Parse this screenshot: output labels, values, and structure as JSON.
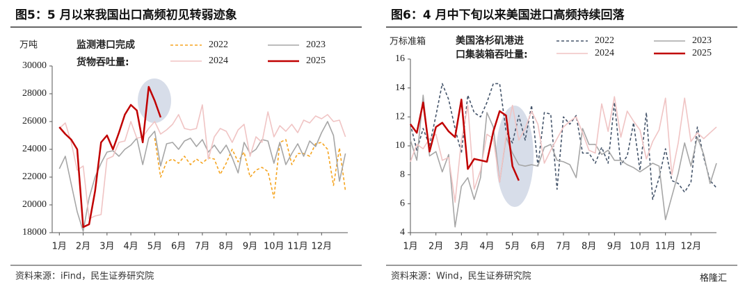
{
  "chart_data": [
    {
      "type": "line",
      "title": "图5：5 月以来我国出口高频初见转弱迹象",
      "unit": "万吨",
      "annotation": [
        "监测港口完成",
        "货物吞吐量:"
      ],
      "source": "资料来源：iFind，民生证券研究院",
      "xlim": [
        0.7,
        13.1
      ],
      "ylim": [
        18000,
        30000
      ],
      "yticks": [
        18000,
        20000,
        22000,
        24000,
        26000,
        28000,
        30000
      ],
      "xticks": [
        {
          "value": 1,
          "label": "1月"
        },
        {
          "value": 2,
          "label": "2月"
        },
        {
          "value": 3,
          "label": "3月"
        },
        {
          "value": 4,
          "label": "4月"
        },
        {
          "value": 5,
          "label": "5月"
        },
        {
          "value": 6,
          "label": "6月"
        },
        {
          "value": 7,
          "label": "7月"
        },
        {
          "value": 8,
          "label": "8月"
        },
        {
          "value": 9,
          "label": "9月"
        },
        {
          "value": 10,
          "label": "10月"
        },
        {
          "value": 11,
          "label": "11月"
        },
        {
          "value": 12,
          "label": "12月"
        }
      ],
      "x": [
        1,
        1.25,
        1.5,
        1.75,
        2,
        2.25,
        2.5,
        2.75,
        3,
        3.25,
        3.5,
        3.75,
        4,
        4.25,
        4.5,
        4.75,
        5,
        5.25,
        5.5,
        5.75,
        6,
        6.25,
        6.5,
        6.75,
        7,
        7.25,
        7.5,
        7.75,
        8,
        8.25,
        8.5,
        8.75,
        9,
        9.25,
        9.5,
        9.75,
        10,
        10.25,
        10.5,
        10.75,
        11,
        11.25,
        11.5,
        11.75,
        12,
        12.25,
        12.5,
        12.75,
        13
      ],
      "series": [
        {
          "name": "2022",
          "color": "#f5a41f",
          "style": "dashed",
          "values": [
            null,
            null,
            null,
            null,
            null,
            null,
            null,
            null,
            null,
            null,
            null,
            null,
            null,
            null,
            null,
            null,
            24800,
            22000,
            23100,
            23300,
            23000,
            23500,
            22900,
            23300,
            23000,
            23400,
            23300,
            22200,
            23000,
            24000,
            23100,
            23800,
            22000,
            22500,
            22700,
            22400,
            20500,
            24500,
            24700,
            22900,
            23700,
            23700,
            23500,
            24400,
            24500,
            24000,
            21400,
            24100,
            21000
          ]
        },
        {
          "name": "2023",
          "color": "#a6a6a6",
          "style": "solid",
          "values": [
            22600,
            23500,
            21500,
            19500,
            18100,
            20500,
            22000,
            23000,
            23800,
            23900,
            23500,
            24000,
            24300,
            24800,
            22900,
            24800,
            25300,
            22800,
            24400,
            24500,
            24000,
            24600,
            24800,
            24200,
            24700,
            23800,
            24300,
            23700,
            24300,
            23400,
            22300,
            24500,
            23700,
            24000,
            24700,
            24600,
            23000,
            24500,
            22900,
            23700,
            24400,
            23500,
            24600,
            24200,
            25200,
            26000,
            25000,
            21700,
            23700
          ]
        },
        {
          "name": "2024",
          "color": "#f0c4c4",
          "style": "solid",
          "values": [
            25500,
            25900,
            24500,
            22500,
            22800,
            19000,
            19200,
            19300,
            23300,
            23500,
            24500,
            24600,
            26000,
            24800,
            24900,
            25500,
            26000,
            25100,
            25400,
            25800,
            26500,
            25500,
            25400,
            25500,
            27200,
            23300,
            24900,
            25500,
            25300,
            24500,
            25400,
            25800,
            23500,
            24900,
            24500,
            26700,
            24900,
            25700,
            25300,
            25800,
            25200,
            26100,
            25900,
            26400,
            26200,
            26500,
            26000,
            26100,
            24900
          ]
        },
        {
          "name": "2025",
          "color": "#c00000",
          "style": "bold",
          "values": [
            25600,
            25100,
            24700,
            24000,
            18400,
            18600,
            21000,
            24500,
            25000,
            24000,
            25200,
            26500,
            27200,
            26800,
            24500,
            28500,
            27500,
            26300,
            null,
            null,
            null,
            null,
            null,
            null,
            null,
            null,
            null,
            null,
            null,
            null,
            null,
            null,
            null,
            null,
            null,
            null,
            null,
            null,
            null,
            null,
            null,
            null,
            null,
            null,
            null,
            null,
            null,
            null,
            null
          ]
        }
      ]
    },
    {
      "type": "line",
      "title": "图6：4 月中下旬以来美国进口高频持续回落",
      "unit": "万标准箱",
      "annotation": [
        "美国洛杉矶港进",
        "口集装箱吞吐量:"
      ],
      "source": "资料来源：Wind，民生证券研究院",
      "watermark": "格隆汇",
      "xlim": [
        1,
        13
      ],
      "ylim": [
        4,
        16
      ],
      "yticks": [
        4,
        6,
        8,
        10,
        12,
        14,
        16
      ],
      "xticks": [
        {
          "value": 1,
          "label": "1月"
        },
        {
          "value": 2,
          "label": "2月"
        },
        {
          "value": 3,
          "label": "3月"
        },
        {
          "value": 4,
          "label": "4月"
        },
        {
          "value": 5,
          "label": "5月"
        },
        {
          "value": 6,
          "label": "6月"
        },
        {
          "value": 7,
          "label": "7月"
        },
        {
          "value": 8,
          "label": "8月"
        },
        {
          "value": 9,
          "label": "9月"
        },
        {
          "value": 10,
          "label": "10月"
        },
        {
          "value": 11,
          "label": "11月"
        },
        {
          "value": 12,
          "label": "12月"
        }
      ],
      "x": [
        1,
        1.25,
        1.5,
        1.75,
        2,
        2.25,
        2.5,
        2.75,
        3,
        3.25,
        3.5,
        3.75,
        4,
        4.25,
        4.5,
        4.75,
        5,
        5.25,
        5.5,
        5.75,
        6,
        6.25,
        6.5,
        6.75,
        7,
        7.25,
        7.5,
        7.75,
        8,
        8.25,
        8.5,
        8.75,
        9,
        9.25,
        9.5,
        9.75,
        10,
        10.25,
        10.5,
        10.75,
        11,
        11.25,
        11.5,
        11.75,
        12,
        12.25,
        12.5,
        12.75,
        13
      ],
      "series": [
        {
          "name": "2022",
          "color": "#44546a",
          "style": "dashed",
          "values": [
            11.5,
            9.7,
            11.2,
            10.0,
            12.1,
            14.3,
            13.2,
            11.2,
            9.5,
            13.5,
            12.3,
            12.0,
            13.0,
            14.3,
            14.3,
            11.0,
            10.2,
            12.1,
            10.4,
            12.8,
            8.6,
            12.3,
            12.2,
            7.0,
            12.0,
            11.5,
            12.1,
            9.5,
            9.5,
            8.8,
            9.9,
            8.8,
            13.0,
            8.7,
            9.3,
            11.6,
            8.3,
            12.3,
            6.3,
            7.8,
            9.8,
            7.6,
            7.4,
            6.8,
            7.5,
            11.3,
            9.2,
            7.6,
            7.1
          ]
        },
        {
          "name": "2023",
          "color": "#a6a6a6",
          "style": "solid",
          "values": [
            10.4,
            9.0,
            13.5,
            9.3,
            9.6,
            8.2,
            9.4,
            4.4,
            7.2,
            7.8,
            6.3,
            7.8,
            12.3,
            11.3,
            7.5,
            10.6,
            9.5,
            8.7,
            8.6,
            8.7,
            8.6,
            9.9,
            10.1,
            9.0,
            8.9,
            8.7,
            7.8,
            11.2,
            10.1,
            10.1,
            9.4,
            9.7,
            9.0,
            9.0,
            8.7,
            8.5,
            8.2,
            8.5,
            8.8,
            8.6,
            4.9,
            6.5,
            8.1,
            10.2,
            8.6,
            10.6,
            9.4,
            7.4,
            8.8
          ]
        },
        {
          "name": "2024",
          "color": "#f0c4c4",
          "style": "solid",
          "values": [
            8.9,
            10.1,
            9.8,
            10.5,
            10.8,
            9.0,
            9.2,
            6.1,
            10.4,
            12.8,
            7.0,
            8.3,
            10.8,
            10.5,
            7.5,
            10.7,
            12.8,
            10.4,
            11.2,
            12.4,
            11.5,
            8.8,
            9.7,
            10.5,
            11.3,
            11.7,
            12.0,
            10.9,
            9.7,
            9.5,
            12.9,
            11.0,
            13.4,
            10.6,
            12.4,
            11.7,
            11.1,
            9.1,
            10.3,
            11.1,
            13.3,
            8.0,
            10.2,
            13.3,
            10.3,
            10.9,
            10.5,
            10.9,
            11.3
          ]
        },
        {
          "name": "2025",
          "color": "#c00000",
          "style": "bold",
          "values": [
            11.5,
            10.9,
            13.0,
            9.6,
            11.3,
            11.6,
            11.0,
            10.6,
            13.2,
            8.4,
            9.1,
            9.0,
            8.9,
            11.0,
            12.4,
            12.1,
            8.6,
            7.6,
            null,
            null,
            null,
            null,
            null,
            null,
            null,
            null,
            null,
            null,
            null,
            null,
            null,
            null,
            null,
            null,
            null,
            null,
            null,
            null,
            null,
            null,
            null,
            null,
            null,
            null,
            null,
            null,
            null,
            null,
            null
          ]
        }
      ]
    }
  ]
}
